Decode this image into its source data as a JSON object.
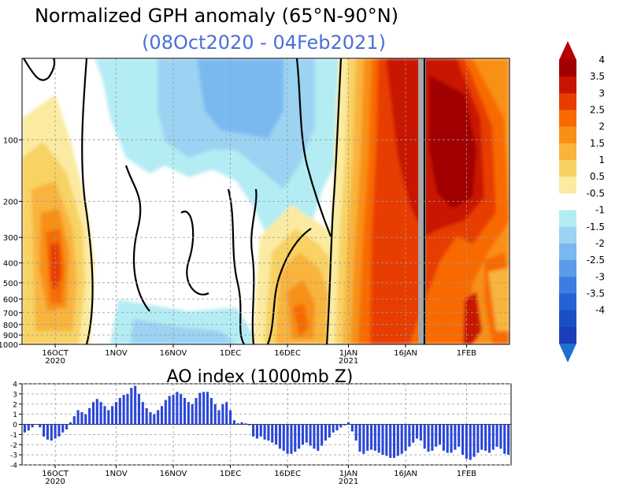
{
  "chart_data": [
    {
      "type": "heatmap",
      "title": "Normalized GPH anomaly (65°N-90°N)",
      "subtitle": "(08Oct2020 - 04Feb2021)",
      "title_color": "#000000",
      "subtitle_color": "#4a6fd6",
      "x_ticks": [
        {
          "date": "2020-10-16",
          "label": "16OCT",
          "sublabel": "2020"
        },
        {
          "date": "2020-11-01",
          "label": "1NOV",
          "sublabel": ""
        },
        {
          "date": "2020-11-16",
          "label": "16NOV",
          "sublabel": ""
        },
        {
          "date": "2020-12-01",
          "label": "1DEC",
          "sublabel": ""
        },
        {
          "date": "2020-12-16",
          "label": "16DEC",
          "sublabel": ""
        },
        {
          "date": "2021-01-01",
          "label": "1JAN",
          "sublabel": "2021"
        },
        {
          "date": "2021-01-16",
          "label": "16JAN",
          "sublabel": ""
        },
        {
          "date": "2021-02-01",
          "label": "1FEB",
          "sublabel": ""
        }
      ],
      "y_ticks": [
        {
          "value": 1000,
          "label": "1000"
        },
        {
          "value": 900,
          "label": "900"
        },
        {
          "value": 800,
          "label": "800"
        },
        {
          "value": 700,
          "label": "700"
        },
        {
          "value": 600,
          "label": "600"
        },
        {
          "value": 500,
          "label": "500"
        },
        {
          "value": 400,
          "label": "400"
        },
        {
          "value": 300,
          "label": "300"
        },
        {
          "value": 200,
          "label": "200"
        },
        {
          "value": 100,
          "label": "100"
        }
      ],
      "colorbar": {
        "labels": [
          "4",
          "3.5",
          "3",
          "2.5",
          "2",
          "1.5",
          "1",
          "0.5",
          "-0.5",
          "-1",
          "-1.5",
          "-2",
          "-2.5",
          "-3",
          "-3.5",
          "-4"
        ],
        "colors": [
          "#a00000",
          "#c81400",
          "#e83c00",
          "#f86a00",
          "#f89018",
          "#f8b43c",
          "#f8d264",
          "#fbeba0",
          "#ffffff",
          "#b4ecf4",
          "#9cd2f2",
          "#7ab8f0",
          "#5a9cea",
          "#3a7ee0",
          "#2462d6",
          "#1a4fc8",
          "#1a3fb8"
        ],
        "top_cap": "#b40000",
        "bottom_cap": "#1e6fd0"
      },
      "missing_color": "#a9a9a9",
      "grid": true
    },
    {
      "type": "bar",
      "title": "AO index (1000mb Z)",
      "ylim": [
        -4,
        4
      ],
      "y_ticks": [
        4,
        3,
        2,
        1,
        0,
        -1,
        -2,
        -3,
        -4
      ],
      "bar_color": "#2a46d8",
      "start_date": "2020-10-08",
      "x_ticks": [
        {
          "date": "2020-10-16",
          "label": "16OCT",
          "sublabel": "2020"
        },
        {
          "date": "2020-11-01",
          "label": "1NOV",
          "sublabel": ""
        },
        {
          "date": "2020-11-16",
          "label": "16NOV",
          "sublabel": ""
        },
        {
          "date": "2020-12-01",
          "label": "1DEC",
          "sublabel": ""
        },
        {
          "date": "2020-12-16",
          "label": "16DEC",
          "sublabel": ""
        },
        {
          "date": "2021-01-01",
          "label": "1JAN",
          "sublabel": "2021"
        },
        {
          "date": "2021-01-16",
          "label": "16JAN",
          "sublabel": ""
        },
        {
          "date": "2021-02-01",
          "label": "1FEB",
          "sublabel": ""
        }
      ],
      "values": [
        -0.8,
        -0.6,
        -0.3,
        0.0,
        -0.3,
        -1.2,
        -1.5,
        -1.6,
        -1.4,
        -1.2,
        -0.8,
        -0.5,
        0.2,
        0.8,
        1.4,
        1.2,
        1.0,
        1.6,
        2.2,
        2.5,
        2.2,
        1.8,
        1.4,
        1.8,
        2.2,
        2.6,
        2.9,
        3.0,
        3.6,
        3.8,
        3.0,
        2.2,
        1.6,
        1.2,
        1.0,
        1.4,
        1.8,
        2.4,
        2.8,
        2.9,
        3.2,
        3.0,
        2.6,
        2.2,
        2.0,
        2.6,
        3.1,
        3.2,
        3.2,
        2.6,
        2.0,
        1.4,
        2.0,
        2.2,
        1.4,
        0.4,
        0.1,
        0.2,
        0.1,
        -0.1,
        -1.2,
        -1.4,
        -1.2,
        -1.5,
        -1.6,
        -1.8,
        -2.0,
        -2.4,
        -2.6,
        -2.9,
        -2.9,
        -2.7,
        -2.4,
        -2.0,
        -1.8,
        -2.1,
        -2.4,
        -2.6,
        -2.1,
        -1.6,
        -1.3,
        -0.8,
        -0.6,
        -0.3,
        -0.1,
        0.2,
        -0.7,
        -1.6,
        -2.7,
        -2.9,
        -2.6,
        -2.5,
        -2.6,
        -2.8,
        -3.0,
        -3.1,
        -3.3,
        -3.3,
        -3.1,
        -2.9,
        -2.6,
        -2.2,
        -1.8,
        -1.4,
        -1.6,
        -2.4,
        -2.7,
        -2.6,
        -2.2,
        -2.0,
        -2.6,
        -2.8,
        -2.8,
        -2.5,
        -2.2,
        -3.0,
        -3.4,
        -3.5,
        -3.2,
        -2.8,
        -2.5,
        -2.6,
        -2.8,
        -2.5,
        -2.2,
        -2.4,
        -2.9,
        -3.0
      ]
    }
  ]
}
